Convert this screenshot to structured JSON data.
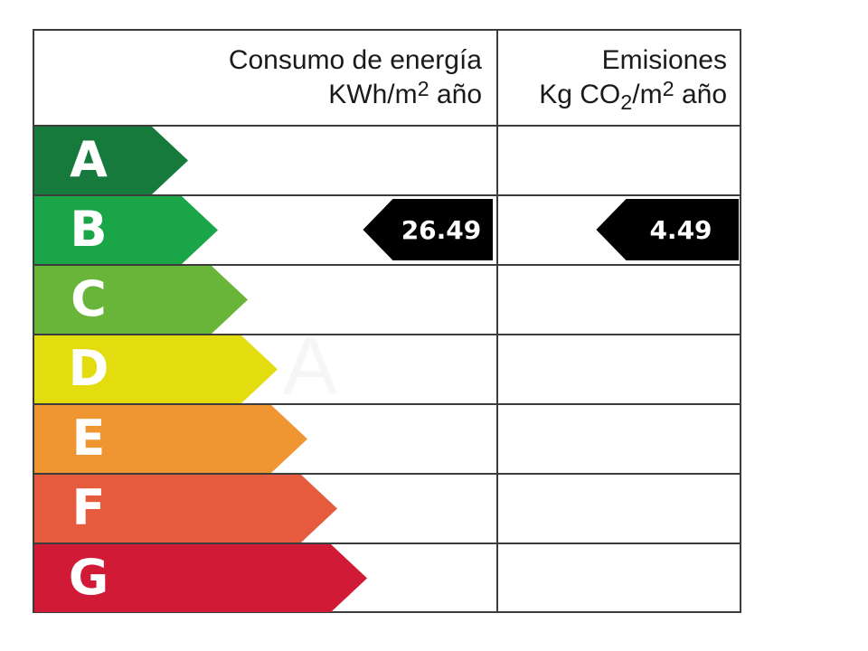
{
  "header": {
    "consumo_title": "Consumo de energía",
    "consumo_unit_prefix": "KWh/m",
    "consumo_unit_sup": "2",
    "consumo_unit_suffix": " año",
    "emisiones_title": "Emisiones",
    "emisiones_unit_prefix": "Kg CO",
    "emisiones_unit_sub": "2",
    "emisiones_unit_mid": "/m",
    "emisiones_unit_sup": "2",
    "emisiones_unit_suffix": " año"
  },
  "ratings": [
    {
      "letter": "A",
      "color": "#157a3b"
    },
    {
      "letter": "B",
      "color": "#1aa548"
    },
    {
      "letter": "C",
      "color": "#68b53a"
    },
    {
      "letter": "D",
      "color": "#e3dd0f"
    },
    {
      "letter": "E",
      "color": "#ef9531"
    },
    {
      "letter": "F",
      "color": "#e65a3d"
    },
    {
      "letter": "G",
      "color": "#d11a35"
    }
  ],
  "consumo_value": {
    "rating": "B",
    "value": "26.49"
  },
  "emisiones_value": {
    "rating": "B",
    "value": "4.49"
  },
  "watermark": "MA"
}
